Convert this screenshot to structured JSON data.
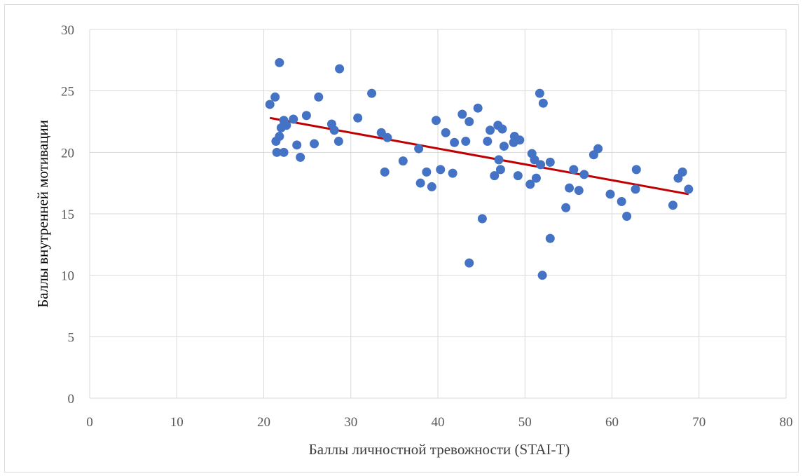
{
  "chart_data": {
    "type": "scatter",
    "title": "",
    "xlabel": "Баллы личностной тревожности (STAI-T)",
    "ylabel": "Баллы внутренней мотивации",
    "xlim": [
      0,
      80
    ],
    "ylim": [
      0,
      30
    ],
    "x_ticks": [
      "0",
      "10",
      "20",
      "30",
      "40",
      "50",
      "60",
      "70",
      "80"
    ],
    "y_ticks": [
      "0",
      "5",
      "10",
      "15",
      "20",
      "25",
      "30"
    ],
    "grid": true,
    "colors": {
      "points": "#4472C4",
      "trendline": "#C00000",
      "grid": "#d9d9d9"
    },
    "series": [
      {
        "points": [
          [
            20.7,
            23.9
          ],
          [
            21.3,
            24.5
          ],
          [
            21.8,
            27.3
          ],
          [
            21.4,
            20.9
          ],
          [
            21.5,
            20.0
          ],
          [
            21.8,
            21.3
          ],
          [
            22.0,
            22.0
          ],
          [
            22.3,
            22.6
          ],
          [
            22.6,
            22.2
          ],
          [
            22.3,
            20.0
          ],
          [
            23.4,
            22.7
          ],
          [
            23.8,
            20.6
          ],
          [
            24.2,
            19.6
          ],
          [
            24.9,
            23.0
          ],
          [
            25.8,
            20.7
          ],
          [
            26.3,
            24.5
          ],
          [
            27.8,
            22.3
          ],
          [
            28.1,
            21.8
          ],
          [
            28.6,
            20.9
          ],
          [
            28.7,
            26.8
          ],
          [
            30.8,
            22.8
          ],
          [
            32.4,
            24.8
          ],
          [
            33.5,
            21.6
          ],
          [
            33.9,
            18.4
          ],
          [
            34.2,
            21.2
          ],
          [
            36.0,
            19.3
          ],
          [
            37.8,
            20.3
          ],
          [
            38.0,
            17.5
          ],
          [
            38.7,
            18.4
          ],
          [
            39.3,
            17.2
          ],
          [
            39.8,
            22.6
          ],
          [
            40.3,
            18.6
          ],
          [
            40.9,
            21.6
          ],
          [
            41.7,
            18.3
          ],
          [
            41.9,
            20.8
          ],
          [
            42.8,
            23.1
          ],
          [
            43.2,
            20.9
          ],
          [
            43.6,
            22.5
          ],
          [
            43.6,
            11.0
          ],
          [
            44.6,
            23.6
          ],
          [
            45.1,
            14.6
          ],
          [
            45.7,
            20.9
          ],
          [
            46.0,
            21.8
          ],
          [
            46.5,
            18.1
          ],
          [
            46.9,
            22.2
          ],
          [
            47.0,
            19.4
          ],
          [
            47.2,
            18.6
          ],
          [
            47.4,
            21.9
          ],
          [
            47.6,
            20.5
          ],
          [
            48.7,
            20.8
          ],
          [
            48.8,
            21.3
          ],
          [
            49.2,
            18.1
          ],
          [
            49.4,
            21.0
          ],
          [
            50.6,
            17.4
          ],
          [
            50.8,
            19.9
          ],
          [
            51.1,
            19.4
          ],
          [
            51.3,
            17.9
          ],
          [
            51.7,
            24.8
          ],
          [
            51.8,
            19.0
          ],
          [
            52.0,
            10.0
          ],
          [
            52.1,
            24.0
          ],
          [
            52.9,
            19.2
          ],
          [
            52.9,
            13.0
          ],
          [
            54.7,
            15.5
          ],
          [
            55.1,
            17.1
          ],
          [
            55.6,
            18.6
          ],
          [
            56.2,
            16.9
          ],
          [
            56.8,
            18.2
          ],
          [
            57.9,
            19.8
          ],
          [
            58.4,
            20.3
          ],
          [
            59.8,
            16.6
          ],
          [
            61.1,
            16.0
          ],
          [
            61.7,
            14.8
          ],
          [
            62.7,
            17.0
          ],
          [
            62.8,
            18.6
          ],
          [
            67.0,
            15.7
          ],
          [
            67.6,
            17.9
          ],
          [
            68.1,
            18.4
          ],
          [
            68.8,
            17.0
          ]
        ]
      }
    ],
    "trendline": {
      "type": "linear",
      "x": [
        20.7,
        68.8
      ],
      "y": [
        22.8,
        16.6
      ]
    }
  }
}
